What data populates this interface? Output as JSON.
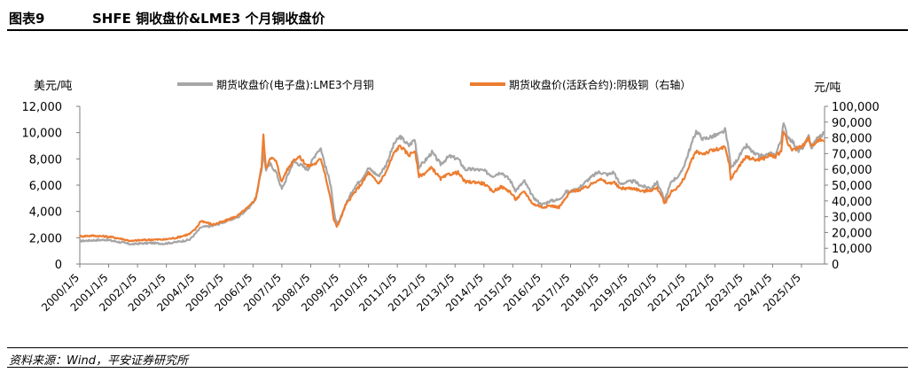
{
  "figure": {
    "number": "图表9",
    "title": "SHFE 铜收盘价&LME3 个月铜收盘价"
  },
  "source": "资料来源：Wind，平安证券研究所",
  "chart_data": {
    "type": "line",
    "y_left_label": "美元/吨",
    "y_right_label": "元/吨",
    "ylim_left": [
      0,
      12000
    ],
    "ylim_right": [
      0,
      100000
    ],
    "yticks_left": [
      "0",
      "2,000",
      "4,000",
      "6,000",
      "8,000",
      "10,000",
      "12,000"
    ],
    "yticks_right": [
      "0",
      "10,000",
      "20,000",
      "30,000",
      "40,000",
      "50,000",
      "60,000",
      "70,000",
      "80,000",
      "90,000",
      "100,000"
    ],
    "xticks": [
      "2000/1/5",
      "2001/1/5",
      "2002/1/5",
      "2003/1/5",
      "2004/1/5",
      "2005/1/5",
      "2006/1/5",
      "2007/1/5",
      "2008/1/5",
      "2009/1/5",
      "2010/1/5",
      "2011/1/5",
      "2012/1/5",
      "2013/1/5",
      "2014/1/5",
      "2015/1/5",
      "2016/1/5",
      "2017/1/5",
      "2018/1/5",
      "2019/1/5",
      "2020/1/5",
      "2021/1/5",
      "2022/1/5",
      "2023/1/5",
      "2024/1/5",
      "2025/1/5"
    ],
    "x_range": [
      2000.0,
      2025.8
    ],
    "series": [
      {
        "name": "期货收盘价(电子盘):LME3个月铜",
        "axis": "left",
        "color": "#a6a6a6",
        "x": [
          2000.0,
          2000.4,
          2000.9,
          2001.3,
          2001.8,
          2002.0,
          2002.5,
          2002.9,
          2003.3,
          2003.8,
          2004.0,
          2004.2,
          2004.6,
          2005.0,
          2005.5,
          2005.9,
          2006.1,
          2006.3,
          2006.36,
          2006.45,
          2006.6,
          2006.8,
          2007.0,
          2007.1,
          2007.4,
          2007.6,
          2007.9,
          2008.2,
          2008.35,
          2008.5,
          2008.7,
          2008.8,
          2008.9,
          2009.0,
          2009.2,
          2009.5,
          2009.8,
          2010.0,
          2010.35,
          2010.6,
          2010.9,
          2011.1,
          2011.4,
          2011.6,
          2011.75,
          2011.9,
          2012.2,
          2012.5,
          2012.8,
          2013.1,
          2013.35,
          2013.7,
          2014.0,
          2014.3,
          2014.6,
          2014.9,
          2015.1,
          2015.4,
          2015.7,
          2015.9,
          2016.0,
          2016.3,
          2016.6,
          2016.85,
          2017.0,
          2017.3,
          2017.6,
          2017.9,
          2018.0,
          2018.3,
          2018.5,
          2018.7,
          2018.9,
          2019.2,
          2019.5,
          2019.8,
          2020.0,
          2020.15,
          2020.25,
          2020.5,
          2020.8,
          2021.0,
          2021.25,
          2021.35,
          2021.6,
          2021.9,
          2022.2,
          2022.35,
          2022.5,
          2022.55,
          2022.7,
          2022.9,
          2023.1,
          2023.4,
          2023.7,
          2023.9,
          2024.1,
          2024.3,
          2024.38,
          2024.5,
          2024.7,
          2024.9,
          2025.1,
          2025.25,
          2025.35,
          2025.5,
          2025.7,
          2025.8
        ],
        "values": [
          1750,
          1800,
          1850,
          1700,
          1500,
          1550,
          1600,
          1550,
          1650,
          1850,
          2300,
          2800,
          2900,
          3200,
          3600,
          4400,
          5000,
          7200,
          8500,
          7200,
          7600,
          7000,
          5700,
          6200,
          7800,
          7600,
          7200,
          8500,
          8800,
          7500,
          6000,
          4000,
          3000,
          3300,
          4500,
          5800,
          6600,
          7300,
          6700,
          7500,
          9200,
          9700,
          9000,
          9500,
          7400,
          7700,
          8500,
          7600,
          8200,
          8000,
          7200,
          7200,
          7100,
          6700,
          7000,
          6400,
          5600,
          6300,
          5100,
          4700,
          4500,
          4800,
          4900,
          5500,
          5500,
          5800,
          6400,
          6900,
          7000,
          6800,
          7000,
          6100,
          6200,
          6300,
          5900,
          5800,
          6200,
          5500,
          4800,
          6300,
          6800,
          7900,
          9500,
          10100,
          9500,
          9700,
          9900,
          10200,
          8500,
          7300,
          7700,
          8400,
          9000,
          8300,
          8200,
          8400,
          8300,
          9500,
          10700,
          9800,
          9300,
          8600,
          9000,
          9700,
          8800,
          9500,
          9800,
          10100
        ]
      },
      {
        "name": "期货收盘价(活跃合约):阴极铜（右轴）",
        "axis": "right",
        "color": "#ed7d31",
        "x": [
          2000.0,
          2000.4,
          2000.9,
          2001.3,
          2001.8,
          2002.0,
          2002.5,
          2002.9,
          2003.3,
          2003.8,
          2004.0,
          2004.2,
          2004.6,
          2005.0,
          2005.5,
          2005.9,
          2006.1,
          2006.3,
          2006.36,
          2006.45,
          2006.6,
          2006.8,
          2007.0,
          2007.1,
          2007.4,
          2007.6,
          2007.9,
          2008.2,
          2008.35,
          2008.5,
          2008.7,
          2008.8,
          2008.9,
          2009.0,
          2009.2,
          2009.5,
          2009.8,
          2010.0,
          2010.35,
          2010.6,
          2010.9,
          2011.1,
          2011.4,
          2011.6,
          2011.75,
          2011.9,
          2012.2,
          2012.5,
          2012.8,
          2013.1,
          2013.35,
          2013.7,
          2014.0,
          2014.3,
          2014.6,
          2014.9,
          2015.1,
          2015.4,
          2015.7,
          2015.9,
          2016.0,
          2016.3,
          2016.6,
          2016.85,
          2017.0,
          2017.3,
          2017.6,
          2017.9,
          2018.0,
          2018.3,
          2018.5,
          2018.7,
          2018.9,
          2019.2,
          2019.5,
          2019.8,
          2020.0,
          2020.15,
          2020.25,
          2020.5,
          2020.8,
          2021.0,
          2021.25,
          2021.35,
          2021.6,
          2021.9,
          2022.2,
          2022.35,
          2022.5,
          2022.55,
          2022.7,
          2022.9,
          2023.1,
          2023.4,
          2023.7,
          2023.9,
          2024.1,
          2024.3,
          2024.38,
          2024.5,
          2024.7,
          2024.9,
          2025.1,
          2025.25,
          2025.35,
          2025.5,
          2025.7,
          2025.8
        ],
        "values": [
          17500,
          18000,
          17500,
          16500,
          14500,
          15000,
          15500,
          15500,
          16500,
          19000,
          22000,
          27500,
          25000,
          27000,
          31000,
          37000,
          42000,
          62000,
          82000,
          60000,
          68000,
          65000,
          52000,
          57000,
          66000,
          68000,
          62000,
          64000,
          67000,
          57000,
          40000,
          28000,
          24000,
          27000,
          37000,
          45000,
          52000,
          58000,
          51000,
          58000,
          71000,
          75000,
          69000,
          72000,
          56000,
          57000,
          61000,
          54000,
          57000,
          58000,
          52000,
          52000,
          51000,
          46000,
          49000,
          46000,
          41000,
          46000,
          38000,
          37000,
          36000,
          37000,
          36000,
          42000,
          46000,
          47000,
          49000,
          53000,
          54000,
          51000,
          52000,
          48000,
          48000,
          48000,
          46000,
          47000,
          48000,
          44000,
          38000,
          46000,
          50000,
          57000,
          68000,
          71000,
          70000,
          72000,
          73000,
          74000,
          63000,
          54000,
          58000,
          64000,
          68000,
          66000,
          67000,
          69000,
          68000,
          72000,
          85000,
          77000,
          72000,
          74000,
          76000,
          80000,
          74000,
          78000,
          79000,
          78000
        ]
      }
    ]
  }
}
